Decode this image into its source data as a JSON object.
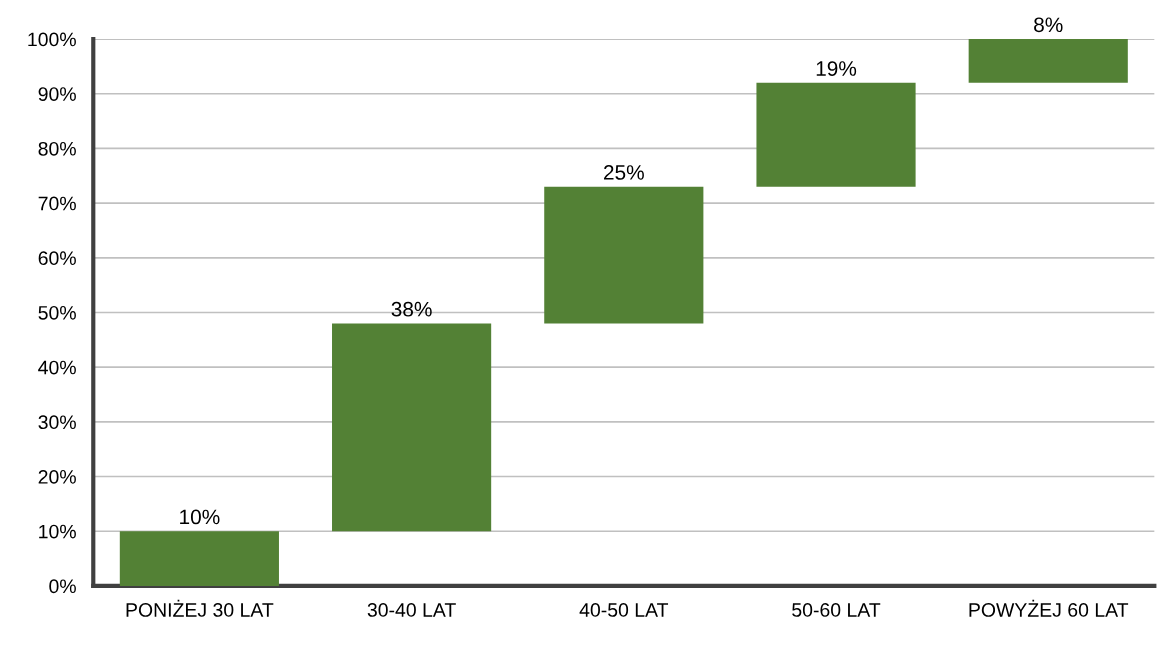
{
  "chart_data": {
    "type": "bar",
    "categories": [
      "PONIŻEJ 30 LAT",
      "30-40 LAT",
      "40-50 LAT",
      "50-60 LAT",
      "POWYŻEJ 60 LAT"
    ],
    "values": [
      10,
      38,
      25,
      19,
      8
    ],
    "base": [
      0,
      10,
      48,
      73,
      92
    ],
    "color": "#538135",
    "value_labels": [
      "10%",
      "38%",
      "25%",
      "19%",
      "8%"
    ],
    "ylim": [
      0,
      100
    ],
    "yticks": [
      {
        "value": 0,
        "label": "0%"
      },
      {
        "value": 10,
        "label": "10%"
      },
      {
        "value": 20,
        "label": "20%"
      },
      {
        "value": 30,
        "label": "30%"
      },
      {
        "value": 40,
        "label": "40%"
      },
      {
        "value": 50,
        "label": "50%"
      },
      {
        "value": 60,
        "label": "60%"
      },
      {
        "value": 70,
        "label": "70%"
      },
      {
        "value": 80,
        "label": "80%"
      },
      {
        "value": 90,
        "label": "90%"
      },
      {
        "value": 100,
        "label": "100%"
      }
    ],
    "grid": "y",
    "legend": false
  }
}
